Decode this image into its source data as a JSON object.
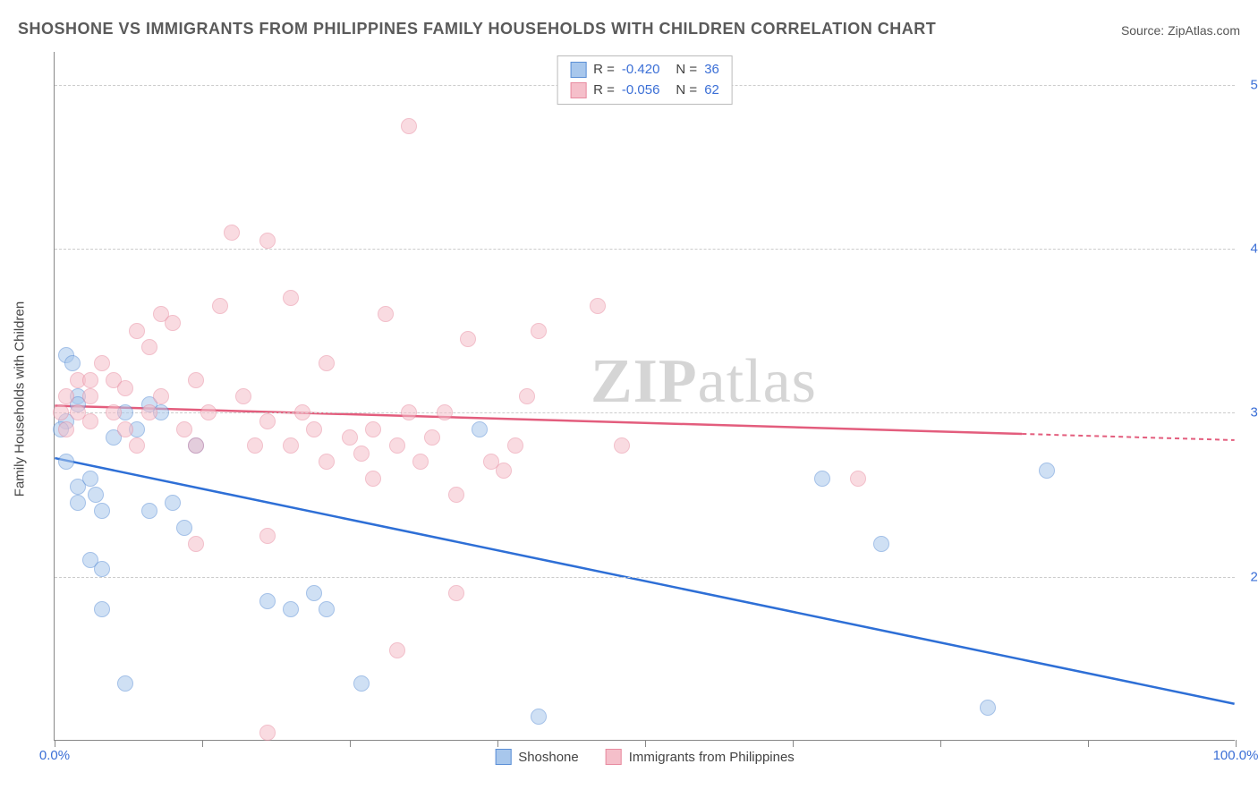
{
  "title": "SHOSHONE VS IMMIGRANTS FROM PHILIPPINES FAMILY HOUSEHOLDS WITH CHILDREN CORRELATION CHART",
  "source_label": "Source: ZipAtlas.com",
  "y_axis_label": "Family Households with Children",
  "watermark": {
    "bold": "ZIP",
    "rest": "atlas"
  },
  "chart": {
    "type": "scatter",
    "xlim": [
      0,
      100
    ],
    "ylim": [
      10,
      52
    ],
    "x_ticks": [
      0,
      12.5,
      25,
      37.5,
      50,
      62.5,
      75,
      87.5,
      100
    ],
    "x_tick_labels": {
      "0": "0.0%",
      "100": "100.0%"
    },
    "y_gridlines": [
      20,
      30,
      40,
      50
    ],
    "y_tick_labels": {
      "20": "20.0%",
      "30": "30.0%",
      "40": "40.0%",
      "50": "50.0%"
    },
    "background_color": "#ffffff",
    "grid_color": "#cccccc",
    "point_radius": 9,
    "point_border_width": 1.2,
    "point_opacity": 0.55,
    "series": [
      {
        "id": "shoshone",
        "label": "Shoshone",
        "fill_color": "#a8c7ec",
        "stroke_color": "#5b8fd6",
        "line_color": "#2e6fd6",
        "trend": {
          "x1": 0,
          "y1": 27.2,
          "x2": 100,
          "y2": 12.2,
          "solid_to_x": 100
        },
        "r_label": "R =",
        "r_value": "-0.420",
        "n_label": "N =",
        "n_value": "36",
        "points": [
          [
            1,
            33.5
          ],
          [
            1.5,
            33
          ],
          [
            2,
            31
          ],
          [
            2,
            30.5
          ],
          [
            1,
            29.5
          ],
          [
            0.5,
            29
          ],
          [
            1,
            27
          ],
          [
            2,
            25.5
          ],
          [
            3,
            26
          ],
          [
            3.5,
            25
          ],
          [
            2,
            24.5
          ],
          [
            4,
            24
          ],
          [
            5,
            28.5
          ],
          [
            6,
            30
          ],
          [
            7,
            29
          ],
          [
            8,
            30.5
          ],
          [
            3,
            21
          ],
          [
            4,
            20.5
          ],
          [
            8,
            24
          ],
          [
            10,
            24.5
          ],
          [
            9,
            30
          ],
          [
            11,
            23
          ],
          [
            12,
            28
          ],
          [
            4,
            18
          ],
          [
            18,
            18.5
          ],
          [
            20,
            18
          ],
          [
            22,
            19
          ],
          [
            23,
            18
          ],
          [
            6,
            13.5
          ],
          [
            26,
            13.5
          ],
          [
            36,
            29
          ],
          [
            41,
            11.5
          ],
          [
            65,
            26
          ],
          [
            70,
            22
          ],
          [
            79,
            12
          ],
          [
            84,
            26.5
          ]
        ]
      },
      {
        "id": "philippines",
        "label": "Immigrants from Philippines",
        "fill_color": "#f5bfca",
        "stroke_color": "#e88ba0",
        "line_color": "#e35d7d",
        "trend": {
          "x1": 0,
          "y1": 30.4,
          "x2": 100,
          "y2": 28.3,
          "solid_to_x": 82
        },
        "r_label": "R =",
        "r_value": "-0.056",
        "n_label": "N =",
        "n_value": "62",
        "points": [
          [
            0.5,
            30
          ],
          [
            1,
            29
          ],
          [
            1,
            31
          ],
          [
            2,
            32
          ],
          [
            2,
            30
          ],
          [
            3,
            32
          ],
          [
            3,
            31
          ],
          [
            3,
            29.5
          ],
          [
            4,
            33
          ],
          [
            5,
            32
          ],
          [
            5,
            30
          ],
          [
            6,
            31.5
          ],
          [
            6,
            29
          ],
          [
            7,
            35
          ],
          [
            7,
            28
          ],
          [
            8,
            30
          ],
          [
            8,
            34
          ],
          [
            9,
            36
          ],
          [
            9,
            31
          ],
          [
            10,
            35.5
          ],
          [
            11,
            29
          ],
          [
            12,
            28
          ],
          [
            12,
            32
          ],
          [
            13,
            30
          ],
          [
            14,
            36.5
          ],
          [
            15,
            41
          ],
          [
            16,
            31
          ],
          [
            17,
            28
          ],
          [
            18,
            40.5
          ],
          [
            18,
            29.5
          ],
          [
            20,
            37
          ],
          [
            20,
            28
          ],
          [
            21,
            30
          ],
          [
            22,
            29
          ],
          [
            23,
            27
          ],
          [
            23,
            33
          ],
          [
            25,
            28.5
          ],
          [
            26,
            27.5
          ],
          [
            27,
            29
          ],
          [
            27,
            26
          ],
          [
            28,
            36
          ],
          [
            29,
            28
          ],
          [
            30,
            30
          ],
          [
            30,
            47.5
          ],
          [
            31,
            27
          ],
          [
            32,
            28.5
          ],
          [
            33,
            30
          ],
          [
            34,
            25
          ],
          [
            35,
            34.5
          ],
          [
            37,
            27
          ],
          [
            38,
            26.5
          ],
          [
            39,
            28
          ],
          [
            40,
            31
          ],
          [
            41,
            35
          ],
          [
            46,
            36.5
          ],
          [
            12,
            22
          ],
          [
            18,
            22.5
          ],
          [
            29,
            15.5
          ],
          [
            34,
            19
          ],
          [
            18,
            10.5
          ],
          [
            48,
            28
          ],
          [
            68,
            26
          ]
        ]
      }
    ]
  },
  "legend_bottom": [
    {
      "label": "Shoshone",
      "fill": "#a8c7ec",
      "stroke": "#5b8fd6"
    },
    {
      "label": "Immigrants from Philippines",
      "fill": "#f5bfca",
      "stroke": "#e88ba0"
    }
  ]
}
